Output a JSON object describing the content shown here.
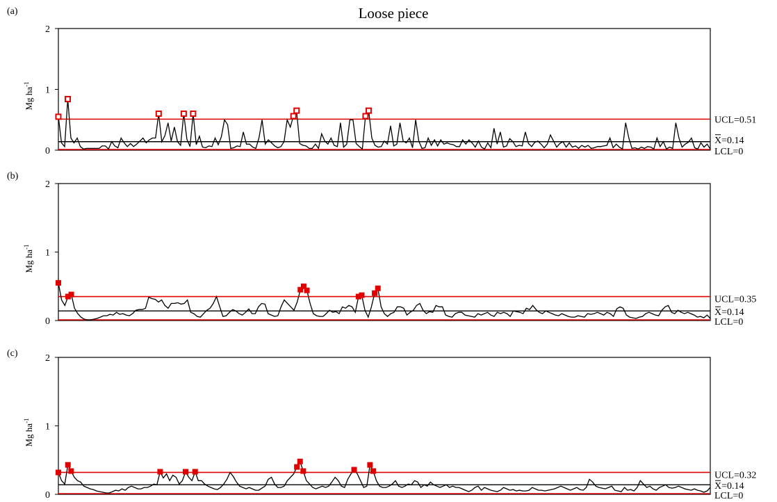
{
  "title": "Loose piece",
  "colors": {
    "series": "#000000",
    "control_limits": "#e00000",
    "center_line": "#000000",
    "out_of_control_marker": "#e00000"
  },
  "chart_data": [
    {
      "panel": "(a)",
      "type": "line",
      "title": "Loose piece",
      "ylabel": "Mg ha-1",
      "ylim": [
        0,
        2
      ],
      "yticks": [
        "0",
        "1",
        "2"
      ],
      "grid": false,
      "marker_style": "open-square",
      "limits": {
        "ucl": 0.51,
        "mean": 0.14,
        "lcl": 0
      },
      "limit_labels": {
        "ucl": "UCL=0.51",
        "mean": "X=0.14",
        "lcl": "LCL=0"
      },
      "values": [
        0.55,
        0.12,
        0.06,
        0.84,
        0.2,
        0.12,
        0.2,
        0.06,
        0.02,
        0.03,
        0.03,
        0.03,
        0.03,
        0.03,
        0.07,
        0.07,
        0.02,
        0.14,
        0.07,
        0.04,
        0.2,
        0.12,
        0.06,
        0.11,
        0.06,
        0.1,
        0.15,
        0.2,
        0.12,
        0.17,
        0.2,
        0.2,
        0.6,
        0.14,
        0.24,
        0.45,
        0.15,
        0.38,
        0.14,
        0.08,
        0.6,
        0.18,
        0.06,
        0.6,
        0.09,
        0.23,
        0.05,
        0.04,
        0.07,
        0.06,
        0.2,
        0.09,
        0.22,
        0.5,
        0.42,
        0.03,
        0.04,
        0.07,
        0.06,
        0.3,
        0.1,
        0.1,
        0.05,
        0.03,
        0.2,
        0.5,
        0.1,
        0.17,
        0.12,
        0.07,
        0.04,
        0.06,
        0.14,
        0.5,
        0.38,
        0.56,
        0.65,
        0.11,
        0.08,
        0.07,
        0.03,
        0.03,
        0.1,
        0.03,
        0.27,
        0.15,
        0.1,
        0.2,
        0.08,
        0.06,
        0.45,
        0.05,
        0.1,
        0.5,
        0.5,
        0.11,
        0.06,
        0.02,
        0.56,
        0.65,
        0.2,
        0.08,
        0.05,
        0.06,
        0.15,
        0.1,
        0.4,
        0.07,
        0.1,
        0.45,
        0.15,
        0.12,
        0.2,
        0.04,
        0.5,
        0.15,
        0.03,
        0.04,
        0.2,
        0.08,
        0.17,
        0.07,
        0.17,
        0.1,
        0.12,
        0.1,
        0.09,
        0.06,
        0.06,
        0.17,
        0.1,
        0.17,
        0.12,
        0.05,
        0.15,
        0.05,
        0.02,
        0.12,
        0.04,
        0.36,
        0.1,
        0.3,
        0.05,
        0.07,
        0.19,
        0.14,
        0.06,
        0.08,
        0.07,
        0.3,
        0.11,
        0.06,
        0.13,
        0.15,
        0.1,
        0.04,
        0.1,
        0.25,
        0.15,
        0.05,
        0.11,
        0.14,
        0.05,
        0.12,
        0.05,
        0.07,
        0.03,
        0.08,
        0.05,
        0.08,
        0.03,
        0.04,
        0.06,
        0.06,
        0.07,
        0.08,
        0.2,
        0.04,
        0.1,
        0.05,
        0.02,
        0.45,
        0.2,
        0.03,
        0.04,
        0.02,
        0.05,
        0.03,
        0.06,
        0.05,
        0.02,
        0.2,
        0.06,
        0.14,
        0.02,
        0.05,
        0.03,
        0.45,
        0.2,
        0.05,
        0.1,
        0.13,
        0.2,
        0.04,
        0.02,
        0.12,
        0.05,
        0.1,
        0.02
      ],
      "out_of_control_indices": [
        0,
        3,
        32,
        40,
        43,
        75,
        76,
        98,
        99
      ]
    },
    {
      "panel": "(b)",
      "type": "line",
      "ylabel": "Mg ha-1",
      "ylim": [
        0,
        2
      ],
      "yticks": [
        "0",
        "1",
        "2"
      ],
      "grid": false,
      "marker_style": "filled-square",
      "limits": {
        "ucl": 0.35,
        "mean": 0.14,
        "lcl": 0
      },
      "limit_labels": {
        "ucl": "UCL=0.35",
        "mean": "X=0.14",
        "lcl": "LCL=0"
      },
      "values": [
        0.55,
        0.3,
        0.22,
        0.35,
        0.38,
        0.18,
        0.1,
        0.05,
        0.02,
        0.01,
        0.01,
        0.02,
        0.03,
        0.05,
        0.07,
        0.07,
        0.09,
        0.08,
        0.12,
        0.09,
        0.1,
        0.08,
        0.07,
        0.1,
        0.15,
        0.16,
        0.16,
        0.18,
        0.34,
        0.32,
        0.31,
        0.27,
        0.3,
        0.22,
        0.18,
        0.25,
        0.25,
        0.26,
        0.24,
        0.25,
        0.3,
        0.12,
        0.1,
        0.06,
        0.05,
        0.1,
        0.15,
        0.18,
        0.25,
        0.35,
        0.2,
        0.06,
        0.07,
        0.12,
        0.16,
        0.14,
        0.1,
        0.08,
        0.12,
        0.17,
        0.1,
        0.1,
        0.2,
        0.25,
        0.24,
        0.1,
        0.08,
        0.06,
        0.07,
        0.2,
        0.3,
        0.25,
        0.2,
        0.15,
        0.27,
        0.45,
        0.5,
        0.44,
        0.25,
        0.1,
        0.07,
        0.06,
        0.06,
        0.1,
        0.15,
        0.12,
        0.13,
        0.1,
        0.2,
        0.18,
        0.22,
        0.2,
        0.12,
        0.35,
        0.37,
        0.15,
        0.05,
        0.2,
        0.4,
        0.47,
        0.2,
        0.1,
        0.06,
        0.1,
        0.12,
        0.2,
        0.2,
        0.18,
        0.08,
        0.12,
        0.15,
        0.22,
        0.25,
        0.15,
        0.1,
        0.13,
        0.12,
        0.22,
        0.2,
        0.2,
        0.08,
        0.06,
        0.05,
        0.1,
        0.12,
        0.12,
        0.08,
        0.07,
        0.06,
        0.05,
        0.1,
        0.08,
        0.1,
        0.12,
        0.08,
        0.06,
        0.12,
        0.1,
        0.12,
        0.1,
        0.06,
        0.14,
        0.13,
        0.12,
        0.1,
        0.18,
        0.16,
        0.22,
        0.16,
        0.12,
        0.1,
        0.14,
        0.12,
        0.1,
        0.08,
        0.07,
        0.1,
        0.08,
        0.06,
        0.05,
        0.05,
        0.07,
        0.06,
        0.05,
        0.1,
        0.09,
        0.1,
        0.12,
        0.1,
        0.08,
        0.12,
        0.1,
        0.06,
        0.17,
        0.2,
        0.18,
        0.08,
        0.05,
        0.04,
        0.03,
        0.05,
        0.06,
        0.1,
        0.12,
        0.1,
        0.08,
        0.07,
        0.15,
        0.2,
        0.22,
        0.12,
        0.1,
        0.15,
        0.12,
        0.1,
        0.12,
        0.1,
        0.08,
        0.05,
        0.06,
        0.04,
        0.08,
        0.03
      ],
      "out_of_control_indices": [
        0,
        3,
        4,
        75,
        76,
        77,
        93,
        94,
        98,
        99
      ]
    },
    {
      "panel": "(c)",
      "type": "line",
      "ylabel": "Mg ha-1",
      "ylim": [
        0,
        2
      ],
      "yticks": [
        "0",
        "1",
        "2"
      ],
      "grid": false,
      "marker_style": "filled-square",
      "limits": {
        "ucl": 0.32,
        "mean": 0.14,
        "lcl": 0
      },
      "limit_labels": {
        "ucl": "UCL=0.32",
        "mean": "X=0.14",
        "lcl": "LCL=0"
      },
      "values": [
        0.32,
        0.2,
        0.15,
        0.43,
        0.34,
        0.25,
        0.2,
        0.18,
        0.12,
        0.1,
        0.08,
        0.07,
        0.05,
        0.04,
        0.03,
        0.02,
        0.02,
        0.04,
        0.06,
        0.05,
        0.08,
        0.06,
        0.1,
        0.12,
        0.1,
        0.08,
        0.08,
        0.1,
        0.1,
        0.12,
        0.15,
        0.14,
        0.33,
        0.24,
        0.3,
        0.2,
        0.28,
        0.25,
        0.15,
        0.2,
        0.33,
        0.25,
        0.2,
        0.33,
        0.2,
        0.2,
        0.15,
        0.12,
        0.1,
        0.08,
        0.07,
        0.1,
        0.15,
        0.22,
        0.32,
        0.26,
        0.18,
        0.12,
        0.1,
        0.08,
        0.1,
        0.08,
        0.06,
        0.06,
        0.09,
        0.12,
        0.22,
        0.25,
        0.15,
        0.1,
        0.1,
        0.12,
        0.2,
        0.25,
        0.3,
        0.4,
        0.48,
        0.34,
        0.2,
        0.15,
        0.1,
        0.08,
        0.1,
        0.12,
        0.1,
        0.12,
        0.18,
        0.25,
        0.2,
        0.12,
        0.1,
        0.22,
        0.3,
        0.36,
        0.3,
        0.2,
        0.1,
        0.12,
        0.43,
        0.34,
        0.2,
        0.12,
        0.1,
        0.1,
        0.12,
        0.15,
        0.2,
        0.12,
        0.1,
        0.12,
        0.15,
        0.14,
        0.2,
        0.18,
        0.1,
        0.14,
        0.12,
        0.18,
        0.14,
        0.12,
        0.1,
        0.12,
        0.14,
        0.1,
        0.12,
        0.1,
        0.1,
        0.08,
        0.06,
        0.04,
        0.06,
        0.1,
        0.12,
        0.06,
        0.1,
        0.08,
        0.06,
        0.05,
        0.04,
        0.06,
        0.1,
        0.08,
        0.06,
        0.07,
        0.05,
        0.06,
        0.05,
        0.05,
        0.06,
        0.1,
        0.08,
        0.06,
        0.06,
        0.05,
        0.06,
        0.07,
        0.08,
        0.1,
        0.12,
        0.1,
        0.08,
        0.06,
        0.08,
        0.1,
        0.07,
        0.06,
        0.1,
        0.22,
        0.18,
        0.12,
        0.1,
        0.09,
        0.08,
        0.1,
        0.12,
        0.06,
        0.05,
        0.04,
        0.1,
        0.06,
        0.07,
        0.05,
        0.1,
        0.2,
        0.15,
        0.1,
        0.12,
        0.08,
        0.06,
        0.1,
        0.12,
        0.14,
        0.1,
        0.09,
        0.1,
        0.12,
        0.1,
        0.08,
        0.07,
        0.06,
        0.08,
        0.06,
        0.05,
        0.03,
        0.05,
        0.1
      ],
      "out_of_control_indices": [
        0,
        3,
        4,
        32,
        40,
        43,
        75,
        76,
        77,
        93,
        98,
        99
      ]
    }
  ]
}
